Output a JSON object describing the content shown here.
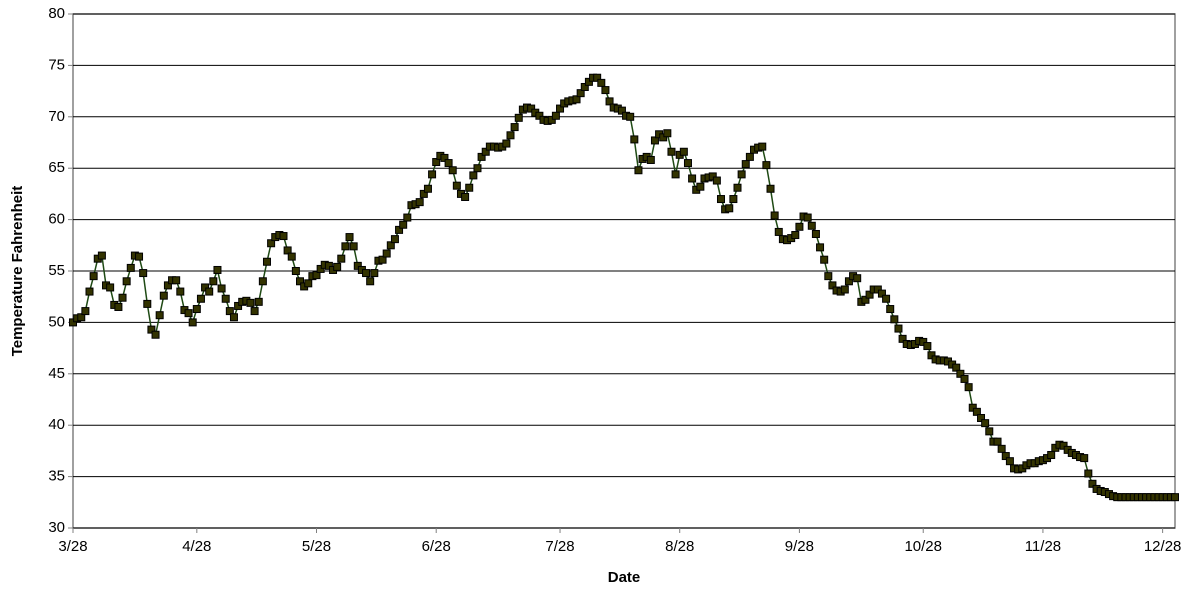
{
  "chart_data": {
    "type": "line",
    "x_label": "Date",
    "y_label": "Temperature Fahrenheit",
    "categories": [
      "3/28",
      null,
      null,
      null,
      null,
      null,
      null,
      null,
      null,
      null,
      null,
      null,
      null,
      null,
      null,
      null,
      null,
      null,
      null,
      null,
      null,
      null,
      null,
      null,
      null,
      null,
      null,
      null,
      null,
      null,
      "4/28",
      null,
      null,
      null,
      null,
      null,
      null,
      null,
      null,
      null,
      null,
      null,
      null,
      null,
      null,
      null,
      null,
      null,
      null,
      null,
      null,
      null,
      null,
      null,
      null,
      null,
      null,
      null,
      null,
      "5/28",
      null,
      null,
      null,
      null,
      null,
      null,
      null,
      null,
      null,
      null,
      null,
      null,
      null,
      null,
      null,
      null,
      null,
      null,
      null,
      null,
      null,
      null,
      null,
      null,
      null,
      null,
      null,
      null,
      "6/28",
      null,
      null,
      null,
      null,
      null,
      null,
      null,
      null,
      null,
      null,
      null,
      null,
      null,
      null,
      null,
      null,
      null,
      null,
      null,
      null,
      null,
      null,
      null,
      null,
      null,
      null,
      null,
      null,
      null,
      "7/28",
      null,
      null,
      null,
      null,
      null,
      null,
      null,
      null,
      null,
      null,
      null,
      null,
      null,
      null,
      null,
      null,
      null,
      null,
      null,
      null,
      null,
      null,
      null,
      null,
      null,
      null,
      null,
      null,
      "8/28",
      null,
      null,
      null,
      null,
      null,
      null,
      null,
      null,
      null,
      null,
      null,
      null,
      null,
      null,
      null,
      null,
      null,
      null,
      null,
      null,
      null,
      null,
      null,
      null,
      null,
      null,
      null,
      null,
      "9/28",
      null,
      null,
      null,
      null,
      null,
      null,
      null,
      null,
      null,
      null,
      null,
      null,
      null,
      null,
      null,
      null,
      null,
      null,
      null,
      null,
      null,
      null,
      null,
      null,
      null,
      null,
      null,
      null,
      null,
      "10/28",
      null,
      null,
      null,
      null,
      null,
      null,
      null,
      null,
      null,
      null,
      null,
      null,
      null,
      null,
      null,
      null,
      null,
      null,
      null,
      null,
      null,
      null,
      null,
      null,
      null,
      null,
      null,
      null,
      "11/28",
      null,
      null,
      null,
      null,
      null,
      null,
      null,
      null,
      null,
      null,
      null,
      null,
      null,
      null,
      null,
      null,
      null,
      null,
      null,
      null,
      null,
      null,
      null,
      null,
      null,
      null,
      null,
      null,
      "12/28",
      null,
      null,
      null
    ],
    "values": [
      50,
      50.4,
      50.5,
      51.1,
      53,
      54.5,
      56.2,
      56.5,
      53.6,
      53.4,
      51.7,
      51.5,
      52.4,
      54,
      55.3,
      56.5,
      56.4,
      54.8,
      51.8,
      49.3,
      48.8,
      50.7,
      52.6,
      53.6,
      54.1,
      54.1,
      53,
      51.2,
      50.9,
      50,
      51.3,
      52.3,
      53.4,
      53,
      54,
      55.1,
      53.3,
      52.3,
      51.1,
      50.5,
      51.6,
      52,
      52.1,
      51.9,
      51.1,
      52,
      54,
      55.9,
      57.7,
      58.3,
      58.5,
      58.4,
      57,
      56.4,
      55,
      54,
      53.5,
      53.8,
      54.5,
      54.6,
      55.2,
      55.6,
      55.5,
      55.1,
      55.4,
      56.2,
      57.4,
      58.3,
      57.4,
      55.5,
      55.1,
      54.8,
      54,
      54.8,
      56,
      56.1,
      56.7,
      57.5,
      58.1,
      59,
      59.5,
      60.2,
      61.4,
      61.5,
      61.7,
      62.5,
      63,
      64.4,
      65.6,
      66.2,
      66,
      65.5,
      64.8,
      63.3,
      62.5,
      62.2,
      63.1,
      64.3,
      65,
      66.1,
      66.6,
      67.1,
      67.1,
      67,
      67.1,
      67.4,
      68.2,
      69,
      69.9,
      70.7,
      70.9,
      70.8,
      70.4,
      70.1,
      69.7,
      69.6,
      69.7,
      70.1,
      70.8,
      71.3,
      71.5,
      71.6,
      71.7,
      72.3,
      72.9,
      73.4,
      73.8,
      73.8,
      73.3,
      72.6,
      71.5,
      70.9,
      70.8,
      70.6,
      70.1,
      70,
      67.8,
      64.8,
      65.9,
      66.1,
      65.8,
      67.7,
      68.3,
      68,
      68.4,
      66.6,
      64.4,
      66.3,
      66.6,
      65.5,
      64,
      62.9,
      63.2,
      64,
      64.1,
      64.2,
      63.8,
      62,
      61,
      61.1,
      62,
      63.1,
      64.4,
      65.4,
      66.1,
      66.8,
      67,
      67.1,
      65.3,
      63,
      60.4,
      58.8,
      58.1,
      58,
      58.2,
      58.5,
      59.3,
      60.3,
      60.2,
      59.4,
      58.6,
      57.3,
      56.1,
      54.5,
      53.6,
      53.1,
      53,
      53.2,
      54,
      54.5,
      54.3,
      52,
      52.2,
      52.7,
      53.2,
      53.2,
      52.8,
      52.3,
      51.3,
      50.3,
      49.4,
      48.4,
      47.9,
      47.8,
      47.9,
      48.2,
      48.1,
      47.7,
      46.8,
      46.4,
      46.3,
      46.3,
      46.2,
      45.9,
      45.6,
      45,
      44.5,
      43.7,
      41.7,
      41.3,
      40.7,
      40.2,
      39.4,
      38.4,
      38.4,
      37.7,
      37,
      36.5,
      35.8,
      35.7,
      35.8,
      36.1,
      36.3,
      36.3,
      36.5,
      36.6,
      36.8,
      37.1,
      37.8,
      38.1,
      38,
      37.6,
      37.3,
      37.1,
      36.9,
      36.8,
      35.3,
      34.3,
      33.8,
      33.6,
      33.5,
      33.3,
      33.1,
      33,
      33,
      33,
      33,
      33,
      33,
      33,
      33,
      33,
      33,
      33,
      33,
      33,
      33,
      33
    ],
    "color": "#1f4a14",
    "marker_color": "#333300",
    "ylim": [
      30,
      80
    ],
    "yticks": [
      30,
      35,
      40,
      45,
      50,
      55,
      60,
      65,
      70,
      75,
      80
    ],
    "grid": true
  }
}
